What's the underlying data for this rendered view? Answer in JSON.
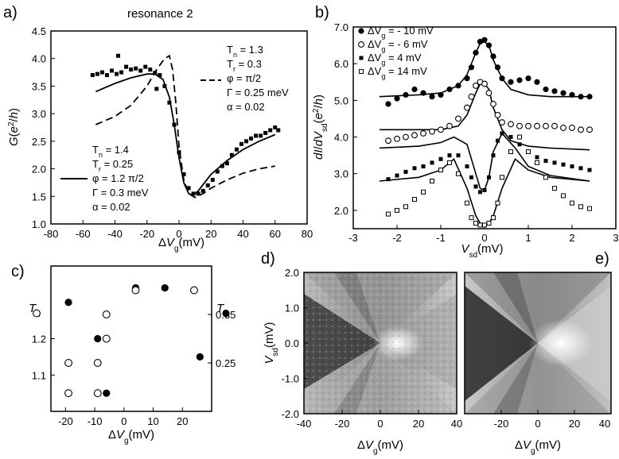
{
  "chart_data": [
    {
      "panel": "a)",
      "type": "scatter",
      "title": "resonance 2",
      "xlabel": "ΔV_g(mV)",
      "ylabel": "G(e^2/h)",
      "xlim": [
        -80,
        80
      ],
      "ylim": [
        1.0,
        4.5
      ],
      "xticks": [
        "-80",
        "-60",
        "-40",
        "-20",
        "0",
        "20",
        "40",
        "60",
        "80"
      ],
      "yticks": [
        "1.0",
        "1.5",
        "2.0",
        "2.5",
        "3.0",
        "3.5",
        "4.0",
        "4.5"
      ],
      "grid": false,
      "series": [
        {
          "style": "squares",
          "x": [
            -54,
            -51,
            -48,
            -45,
            -42,
            -39,
            -36,
            -33,
            -30,
            -27,
            -24,
            -21,
            -18,
            -15,
            -12,
            -9,
            -6,
            -3,
            0,
            3,
            6,
            9,
            12,
            15,
            18,
            21,
            24,
            27,
            30,
            33,
            36,
            39,
            42,
            45,
            48,
            51,
            54,
            57,
            60,
            62
          ],
          "y": [
            3.7,
            3.72,
            3.75,
            3.7,
            3.78,
            3.72,
            3.75,
            3.85,
            3.8,
            3.82,
            3.78,
            3.85,
            3.8,
            3.74,
            3.7,
            3.5,
            3.2,
            2.8,
            2.3,
            1.9,
            1.65,
            1.55,
            1.55,
            1.6,
            1.7,
            1.8,
            1.95,
            2.05,
            2.1,
            2.25,
            2.35,
            2.45,
            2.5,
            2.55,
            2.6,
            2.6,
            2.65,
            2.7,
            2.75,
            2.7
          ]
        },
        {
          "style": "squares-scatter",
          "x": [
            -38,
            -14
          ],
          "y": [
            4.05,
            3.45
          ]
        },
        {
          "style": "solid",
          "x": [
            -52,
            -40,
            -30,
            -20,
            -15,
            -10,
            -6,
            -3,
            0,
            3,
            6,
            9,
            12,
            16,
            20,
            30,
            40,
            50,
            60
          ],
          "y": [
            3.4,
            3.55,
            3.65,
            3.72,
            3.72,
            3.62,
            3.3,
            2.8,
            2.2,
            1.75,
            1.55,
            1.52,
            1.6,
            1.75,
            1.9,
            2.15,
            2.35,
            2.5,
            2.62
          ]
        },
        {
          "style": "dashed",
          "x": [
            -52,
            -40,
            -30,
            -20,
            -14,
            -9,
            -6,
            -4,
            -2,
            0,
            3,
            6,
            10,
            15,
            20,
            30,
            40,
            50,
            60
          ],
          "y": [
            2.8,
            2.95,
            3.15,
            3.5,
            3.8,
            4.0,
            4.05,
            3.8,
            3.2,
            2.4,
            1.8,
            1.55,
            1.48,
            1.55,
            1.65,
            1.8,
            1.92,
            2.0,
            2.05
          ]
        }
      ],
      "legend": [
        {
          "style": "dashed",
          "lines": [
            "T_n = 1.3",
            "T_r = 0.3",
            "φ = π/2",
            "Γ = 0.25 meV",
            "α = 0.02"
          ]
        },
        {
          "style": "solid",
          "lines": [
            "T_n = 1.4",
            "T_r = 0.25",
            "φ = 1.2 π/2",
            "Γ = 0.3 meV",
            "α = 0.02"
          ]
        }
      ]
    },
    {
      "panel": "b)",
      "type": "scatter",
      "xlabel": "V_sd(mV)",
      "ylabel": "dI/dV_sd(e^2/h)",
      "xlim": [
        -3,
        3
      ],
      "ylim": [
        1.5,
        7.0
      ],
      "xticks": [
        "-3",
        "-2",
        "-1",
        "0",
        "1",
        "2",
        "3"
      ],
      "yticks": [
        "2.0",
        "3.0",
        "4.0",
        "5.0",
        "6.0",
        "7.0"
      ],
      "grid": false,
      "legend": [
        {
          "marker": "filled-circle",
          "label": "ΔV_g = - 10 mV"
        },
        {
          "marker": "open-circle",
          "label": "ΔV_g = - 6 mV"
        },
        {
          "marker": "filled-square",
          "label": "ΔV_g = 4 mV"
        },
        {
          "marker": "open-square",
          "label": "ΔV_g = 14 mV"
        }
      ],
      "series": [
        {
          "marker": "filled-circle",
          "x": [
            -2.2,
            -2.0,
            -1.8,
            -1.6,
            -1.4,
            -1.2,
            -1.0,
            -0.8,
            -0.6,
            -0.4,
            -0.3,
            -0.2,
            -0.1,
            0.0,
            0.1,
            0.2,
            0.3,
            0.4,
            0.6,
            0.8,
            1.0,
            1.2,
            1.4,
            1.6,
            1.8,
            2.0,
            2.2,
            2.4
          ],
          "y": [
            4.9,
            5.05,
            5.15,
            5.3,
            5.2,
            5.1,
            5.15,
            5.3,
            5.4,
            5.6,
            5.9,
            6.3,
            6.6,
            6.65,
            6.5,
            6.2,
            5.9,
            5.6,
            5.5,
            5.55,
            5.6,
            5.5,
            5.3,
            5.25,
            5.2,
            5.15,
            5.1,
            5.1
          ]
        },
        {
          "marker": "open-circle",
          "x": [
            -2.2,
            -2.0,
            -1.8,
            -1.6,
            -1.4,
            -1.2,
            -1.0,
            -0.8,
            -0.6,
            -0.4,
            -0.3,
            -0.2,
            -0.1,
            0.0,
            0.1,
            0.2,
            0.3,
            0.4,
            0.6,
            0.8,
            1.0,
            1.2,
            1.4,
            1.6,
            1.8,
            2.0,
            2.2,
            2.4
          ],
          "y": [
            3.9,
            3.95,
            4.0,
            4.05,
            4.1,
            4.15,
            4.2,
            4.3,
            4.5,
            4.8,
            5.1,
            5.4,
            5.5,
            5.45,
            5.2,
            4.9,
            4.6,
            4.4,
            4.35,
            4.3,
            4.3,
            4.3,
            4.3,
            4.3,
            4.25,
            4.25,
            4.2,
            4.2
          ]
        },
        {
          "marker": "filled-square",
          "x": [
            -2.2,
            -2.0,
            -1.8,
            -1.6,
            -1.4,
            -1.2,
            -1.0,
            -0.8,
            -0.6,
            -0.4,
            -0.3,
            -0.2,
            -0.1,
            0.0,
            0.1,
            0.2,
            0.3,
            0.4,
            0.6,
            0.8,
            1.0,
            1.2,
            1.4,
            1.6,
            1.8,
            2.0,
            2.2,
            2.4
          ],
          "y": [
            2.85,
            2.95,
            3.05,
            3.15,
            3.2,
            3.3,
            3.4,
            3.5,
            3.5,
            3.2,
            2.9,
            2.65,
            2.5,
            2.55,
            2.9,
            3.5,
            3.9,
            4.1,
            4.0,
            3.8,
            3.6,
            3.45,
            3.35,
            3.3,
            3.25,
            3.2,
            3.15,
            3.1
          ]
        },
        {
          "marker": "open-square",
          "x": [
            -2.2,
            -2.0,
            -1.8,
            -1.6,
            -1.4,
            -1.2,
            -1.0,
            -0.8,
            -0.6,
            -0.4,
            -0.3,
            -0.2,
            -0.1,
            0.0,
            0.1,
            0.2,
            0.3,
            0.4,
            0.6,
            0.8,
            1.0,
            1.2,
            1.4,
            1.6,
            1.8,
            2.0,
            2.2,
            2.4
          ],
          "y": [
            1.9,
            2.0,
            2.1,
            2.3,
            2.5,
            2.8,
            3.1,
            3.3,
            3.0,
            2.2,
            1.8,
            1.65,
            1.6,
            1.6,
            1.65,
            1.8,
            2.2,
            2.9,
            3.6,
            4.0,
            3.6,
            3.3,
            2.9,
            2.6,
            2.4,
            2.2,
            2.1,
            2.05
          ]
        },
        {
          "style": "fit-solid",
          "offset": 5.1,
          "x": [
            -2.4,
            -1.5,
            -1.0,
            -0.6,
            -0.4,
            -0.2,
            -0.1,
            0.0,
            0.1,
            0.2,
            0.4,
            0.6,
            1.0,
            1.5,
            2.4
          ],
          "y": [
            5.1,
            5.15,
            5.2,
            5.4,
            5.7,
            6.3,
            6.55,
            6.6,
            6.5,
            6.1,
            5.6,
            5.3,
            5.15,
            5.1,
            5.1
          ]
        },
        {
          "style": "fit-solid",
          "x": [
            -2.4,
            -1.5,
            -1.0,
            -0.6,
            -0.4,
            -0.2,
            -0.1,
            0.0,
            0.1,
            0.2,
            0.4,
            0.6,
            1.0,
            1.5,
            2.4
          ],
          "y": [
            4.2,
            4.2,
            4.2,
            4.3,
            4.6,
            5.2,
            5.45,
            5.45,
            5.3,
            4.8,
            4.2,
            3.9,
            3.75,
            3.7,
            3.65
          ]
        },
        {
          "style": "fit-solid",
          "x": [
            -2.4,
            -1.5,
            -1.0,
            -0.7,
            -0.4,
            -0.2,
            -0.1,
            0.0,
            0.1,
            0.2,
            0.4,
            0.7,
            1.0,
            1.5,
            2.4
          ],
          "y": [
            3.7,
            3.75,
            3.85,
            4.0,
            3.8,
            3.0,
            2.6,
            2.55,
            2.9,
            3.6,
            4.1,
            3.7,
            3.2,
            2.95,
            2.8
          ]
        },
        {
          "style": "fit-solid",
          "x": [
            -2.4,
            -1.5,
            -1.0,
            -0.7,
            -0.4,
            -0.2,
            -0.1,
            0.0,
            0.1,
            0.2,
            0.4,
            0.7,
            1.0,
            1.5,
            2.4
          ],
          "y": [
            2.8,
            2.9,
            3.1,
            3.4,
            2.6,
            1.85,
            1.65,
            1.62,
            1.65,
            1.85,
            2.6,
            3.4,
            3.1,
            2.9,
            2.8
          ]
        }
      ]
    },
    {
      "panel": "c)",
      "type": "scatter",
      "xlabel": "ΔV_g(mV)",
      "ylabel_left": "T_n",
      "ylabel_right": "T_r",
      "xlim": [
        -25,
        30
      ],
      "xticks": [
        "-20",
        "-10",
        "0",
        "10",
        "20"
      ],
      "yticks_left": [
        "1.1",
        "1.2"
      ],
      "yticks_right": [
        "0.25",
        "0.35"
      ],
      "series": [
        {
          "name_axis": "left",
          "marker": "filled-circle",
          "x": [
            -19,
            -9,
            4,
            14,
            26
          ],
          "y": [
            1.3,
            1.2,
            1.34,
            1.34,
            1.15
          ]
        },
        {
          "name_axis": "right",
          "marker": "open-circle",
          "x": [
            -19,
            -9,
            -6,
            4,
            24
          ],
          "y": [
            0.25,
            0.25,
            0.35,
            0.4,
            0.4
          ]
        },
        {
          "name_axis": "left",
          "marker": "open-circle",
          "x": [
            -19,
            -9,
            -6
          ],
          "y": [
            1.05,
            1.05,
            1.2
          ]
        },
        {
          "name_axis": "left",
          "marker": "filled-circle",
          "x": [
            -6
          ],
          "y": [
            1.05
          ]
        }
      ],
      "yl_range": [
        1.0,
        1.4
      ],
      "extra_markers": [
        {
          "marker": "open-circle",
          "side": "left-outside",
          "y": 1.27
        },
        {
          "marker": "filled-circle",
          "side": "right-outside",
          "y": 1.27
        }
      ]
    },
    {
      "panel": "d)",
      "type": "heatmap",
      "xlabel": "ΔV_g(mV)",
      "ylabel": "V_sd(mV)",
      "xlim": [
        -40,
        40
      ],
      "ylim": [
        -2.0,
        2.0
      ],
      "xticks": [
        "-40",
        "-20",
        "0",
        "20",
        "40"
      ],
      "yticks": [
        "-2.0",
        "-1.0",
        "0.0",
        "1.0",
        "2.0"
      ]
    },
    {
      "panel": "e)",
      "type": "heatmap",
      "xlabel": "ΔV_g(mV)",
      "xlim": [
        -40,
        40
      ],
      "ylim": [
        -2.0,
        2.0
      ],
      "xticks": [
        "-20",
        "0",
        "20",
        "40"
      ]
    }
  ]
}
